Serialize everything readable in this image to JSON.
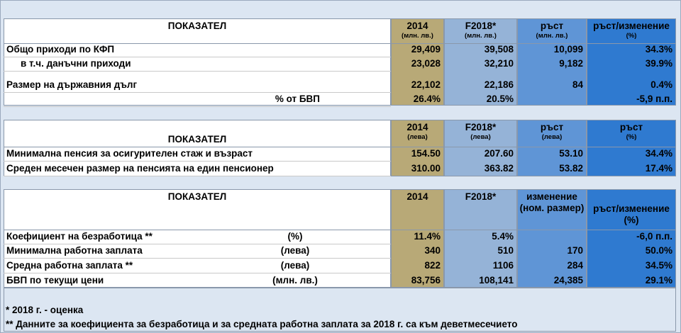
{
  "section1": {
    "label_header": "ПОКАЗАТЕЛ",
    "columns": [
      {
        "title": "2014",
        "unit": "(млн. лв.)"
      },
      {
        "title": "F2018*",
        "unit": "(млн. лв.)"
      },
      {
        "title": "ръст",
        "unit": "(млн. лв.)"
      },
      {
        "title": "ръст/изменение",
        "unit": "(%)"
      }
    ],
    "rows": [
      {
        "label": "Общо приходи по КФП",
        "cells": [
          "29,409",
          "39,508",
          "10,099",
          "34.3%"
        ]
      },
      {
        "label": "в т.ч. данъчни приходи",
        "cells": [
          "23,028",
          "32,210",
          "9,182",
          "39.9%"
        ]
      },
      {
        "label": "Размер на държавния дълг",
        "cells": [
          "22,102",
          "22,186",
          "84",
          "0.4%"
        ]
      },
      {
        "label": "% от БВП",
        "cells": [
          "26.4%",
          "20.5%",
          null,
          "-5,9 п.п."
        ]
      }
    ]
  },
  "section2": {
    "label_header": "ПОКАЗАТЕЛ",
    "columns": [
      {
        "title": "2014",
        "unit": "(лева)"
      },
      {
        "title": "F2018*",
        "unit": "(лева)"
      },
      {
        "title": "ръст",
        "unit": "(лева)"
      },
      {
        "title": "ръст",
        "unit": "(%)"
      }
    ],
    "rows": [
      {
        "label": "Минимална пенсия за осигурителен стаж и възраст",
        "cells": [
          "154.50",
          "207.60",
          "53.10",
          "34.4%"
        ]
      },
      {
        "label": "Среден месечен размер на пенсията на един пенсионер",
        "cells": [
          "310.00",
          "363.82",
          "53.82",
          "17.4%"
        ]
      }
    ]
  },
  "section3": {
    "label_header": "ПОКАЗАТЕЛ",
    "columns": [
      {
        "title": "2014"
      },
      {
        "title": "F2018*"
      },
      {
        "title": "изменение",
        "unit": "(ном. размер)"
      },
      {
        "title": "ръст/изменение",
        "unit": "(%)"
      }
    ],
    "rows": [
      {
        "label": "Коефициент на безработица **",
        "unit": "(%)",
        "cells": [
          "11.4%",
          "5.4%",
          null,
          "-6,0 п.п."
        ]
      },
      {
        "label": "Минимална работна заплата",
        "unit": "(лева)",
        "cells": [
          "340",
          "510",
          "170",
          "50.0%"
        ]
      },
      {
        "label": "Средна работна заплата **",
        "unit": "(лева)",
        "cells": [
          "822",
          "1106",
          "284",
          "34.5%"
        ]
      },
      {
        "label": "БВП по текущи цени",
        "unit": "(млн. лв.)",
        "cells": [
          "83,756",
          "108,141",
          "24,385",
          "29.1%"
        ]
      }
    ]
  },
  "footnotes": [
    "* 2018 г. - оценка",
    "** Данните за коефициента за безработица и за средната работна заплата за 2018 г. са към деветмесечието"
  ]
}
